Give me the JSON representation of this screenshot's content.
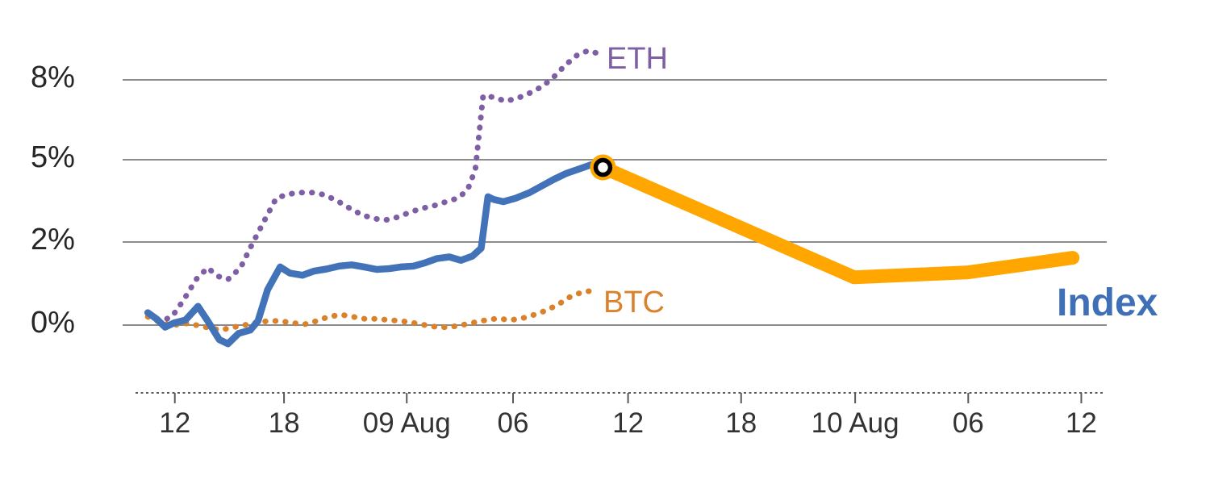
{
  "labels": {
    "eth": "ETH",
    "btc": "BTC",
    "index": "Index"
  },
  "colors": {
    "eth": "#7E5FA5",
    "btc": "#D9822B",
    "index": "#4273B8",
    "index_highlight": "#FFA600",
    "index_label": "#3E6FB7",
    "gridline": "#8C8C8C",
    "axis": "#595959",
    "marker_ring": "#000000",
    "marker_fill": "#FFFFFF"
  },
  "chart_data": {
    "type": "line",
    "title": "",
    "xlabel": "",
    "ylabel": "",
    "grid": true,
    "legend_position": "inline-labels",
    "y_axis": {
      "unit": "%",
      "ticks": [
        {
          "label": "8%",
          "value": 8
        },
        {
          "label": "5%",
          "value": 5
        },
        {
          "label": "2%",
          "value": 2
        },
        {
          "label": "0%",
          "value": 0
        }
      ]
    },
    "x_axis": {
      "ticks": [
        {
          "label": "12",
          "t": 0.039
        },
        {
          "label": "18",
          "t": 0.152
        },
        {
          "label": "09 Aug",
          "t": 0.279
        },
        {
          "label": "06",
          "t": 0.389
        },
        {
          "label": "12",
          "t": 0.508
        },
        {
          "label": "18",
          "t": 0.625
        },
        {
          "label": "10 Aug",
          "t": 0.743
        },
        {
          "label": "06",
          "t": 0.86
        },
        {
          "label": "12",
          "t": 0.977
        }
      ]
    },
    "series": [
      {
        "name": "ETH",
        "style": "dotted",
        "color": "#7E5FA5",
        "points": [
          [
            0.012,
            0.25
          ],
          [
            0.025,
            0.1
          ],
          [
            0.036,
            0.2
          ],
          [
            0.048,
            0.6
          ],
          [
            0.061,
            1.1
          ],
          [
            0.073,
            1.38
          ],
          [
            0.083,
            1.18
          ],
          [
            0.094,
            1.1
          ],
          [
            0.107,
            1.38
          ],
          [
            0.119,
            1.95
          ],
          [
            0.132,
            2.8
          ],
          [
            0.144,
            3.6
          ],
          [
            0.157,
            3.75
          ],
          [
            0.169,
            3.8
          ],
          [
            0.182,
            3.8
          ],
          [
            0.194,
            3.72
          ],
          [
            0.207,
            3.5
          ],
          [
            0.219,
            3.25
          ],
          [
            0.232,
            3.0
          ],
          [
            0.244,
            2.86
          ],
          [
            0.257,
            2.8
          ],
          [
            0.269,
            2.9
          ],
          [
            0.282,
            3.08
          ],
          [
            0.294,
            3.22
          ],
          [
            0.307,
            3.32
          ],
          [
            0.319,
            3.46
          ],
          [
            0.332,
            3.6
          ],
          [
            0.342,
            3.9
          ],
          [
            0.35,
            4.65
          ],
          [
            0.358,
            7.4
          ],
          [
            0.369,
            7.35
          ],
          [
            0.381,
            7.2
          ],
          [
            0.393,
            7.3
          ],
          [
            0.406,
            7.5
          ],
          [
            0.419,
            7.75
          ],
          [
            0.431,
            8.1
          ],
          [
            0.443,
            8.55
          ],
          [
            0.456,
            8.95
          ],
          [
            0.467,
            9.1
          ],
          [
            0.476,
            9.0
          ]
        ]
      },
      {
        "name": "BTC",
        "style": "dotted",
        "color": "#D9822B",
        "points": [
          [
            0.011,
            0.2
          ],
          [
            0.023,
            0.08
          ],
          [
            0.036,
            -0.02
          ],
          [
            0.048,
            0.05
          ],
          [
            0.061,
            0.0
          ],
          [
            0.073,
            -0.06
          ],
          [
            0.086,
            -0.12
          ],
          [
            0.098,
            -0.06
          ],
          [
            0.111,
            0.0
          ],
          [
            0.123,
            0.06
          ],
          [
            0.136,
            0.1
          ],
          [
            0.148,
            0.1
          ],
          [
            0.161,
            0.05
          ],
          [
            0.173,
            0.02
          ],
          [
            0.186,
            0.1
          ],
          [
            0.198,
            0.2
          ],
          [
            0.211,
            0.25
          ],
          [
            0.223,
            0.2
          ],
          [
            0.236,
            0.15
          ],
          [
            0.248,
            0.15
          ],
          [
            0.261,
            0.12
          ],
          [
            0.273,
            0.1
          ],
          [
            0.286,
            0.05
          ],
          [
            0.298,
            0.0
          ],
          [
            0.311,
            -0.05
          ],
          [
            0.323,
            -0.05
          ],
          [
            0.336,
            0.0
          ],
          [
            0.348,
            0.06
          ],
          [
            0.361,
            0.12
          ],
          [
            0.373,
            0.16
          ],
          [
            0.386,
            0.12
          ],
          [
            0.398,
            0.16
          ],
          [
            0.411,
            0.25
          ],
          [
            0.423,
            0.35
          ],
          [
            0.436,
            0.5
          ],
          [
            0.448,
            0.68
          ],
          [
            0.461,
            0.8
          ],
          [
            0.473,
            0.83
          ]
        ]
      },
      {
        "name": "Index",
        "style": "solid",
        "color": "#4273B8",
        "points": [
          [
            0.011,
            0.3
          ],
          [
            0.02,
            0.15
          ],
          [
            0.029,
            -0.05
          ],
          [
            0.038,
            0.05
          ],
          [
            0.05,
            0.12
          ],
          [
            0.063,
            0.45
          ],
          [
            0.073,
            0.1
          ],
          [
            0.085,
            -0.35
          ],
          [
            0.094,
            -0.45
          ],
          [
            0.105,
            -0.2
          ],
          [
            0.117,
            -0.12
          ],
          [
            0.125,
            0.1
          ],
          [
            0.135,
            0.85
          ],
          [
            0.148,
            1.4
          ],
          [
            0.158,
            1.25
          ],
          [
            0.171,
            1.2
          ],
          [
            0.183,
            1.3
          ],
          [
            0.196,
            1.35
          ],
          [
            0.209,
            1.42
          ],
          [
            0.222,
            1.45
          ],
          [
            0.235,
            1.4
          ],
          [
            0.248,
            1.34
          ],
          [
            0.261,
            1.36
          ],
          [
            0.273,
            1.4
          ],
          [
            0.286,
            1.42
          ],
          [
            0.298,
            1.5
          ],
          [
            0.31,
            1.6
          ],
          [
            0.323,
            1.64
          ],
          [
            0.335,
            1.56
          ],
          [
            0.347,
            1.66
          ],
          [
            0.356,
            1.85
          ],
          [
            0.363,
            3.65
          ],
          [
            0.369,
            3.55
          ],
          [
            0.379,
            3.47
          ],
          [
            0.392,
            3.6
          ],
          [
            0.406,
            3.8
          ],
          [
            0.419,
            4.05
          ],
          [
            0.431,
            4.28
          ],
          [
            0.444,
            4.5
          ],
          [
            0.457,
            4.66
          ],
          [
            0.47,
            4.82
          ],
          [
            0.482,
            4.72
          ]
        ]
      },
      {
        "name": "Index (highlighted segment)",
        "style": "thick",
        "color": "#FFA600",
        "points": [
          [
            0.482,
            4.72
          ],
          [
            0.742,
            1.15
          ],
          [
            0.86,
            1.27
          ],
          [
            0.968,
            1.62
          ]
        ]
      }
    ],
    "marker": {
      "series": "Index",
      "t": 0.482,
      "value": 4.72
    }
  }
}
